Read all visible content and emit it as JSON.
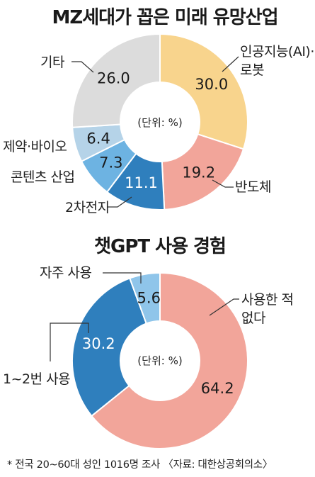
{
  "chart_data": [
    {
      "type": "pie",
      "title": "MZ세대가 꼽은 미래 유망산업",
      "unit_label": "(단위: %)",
      "slices": [
        {
          "label": "인공지능(AI)·\n로봇",
          "value": 30.0,
          "value_label": "30.0",
          "color": "#f8d48d"
        },
        {
          "label": "반도체",
          "value": 19.2,
          "value_label": "19.2",
          "color": "#f2a59a"
        },
        {
          "label": "2차전지",
          "value": 11.1,
          "value_label": "11.1",
          "color": "#2f7fbd"
        },
        {
          "label": "콘텐츠 산업",
          "value": 7.3,
          "value_label": "7.3",
          "color": "#6db3e2"
        },
        {
          "label": "제약·바이오",
          "value": 6.4,
          "value_label": "6.4",
          "color": "#b5d3e8"
        },
        {
          "label": "기타",
          "value": 26.0,
          "value_label": "26.0",
          "color": "#dcdcdc"
        }
      ]
    },
    {
      "type": "pie",
      "title": "챗GPT 사용 경험",
      "unit_label": "(단위: %)",
      "slices": [
        {
          "label": "사용한 적\n없다",
          "value": 64.2,
          "value_label": "64.2",
          "color": "#f2a59a"
        },
        {
          "label": "1~2번 사용",
          "value": 30.2,
          "value_label": "30.2",
          "color": "#2f7fbd"
        },
        {
          "label": "자주 사용",
          "value": 5.6,
          "value_label": "5.6",
          "color": "#8fc5ea"
        }
      ]
    }
  ],
  "footnote": "* 전국 20~60대 성인 1016명 조사 〈자료: 대한상공회의소〉"
}
